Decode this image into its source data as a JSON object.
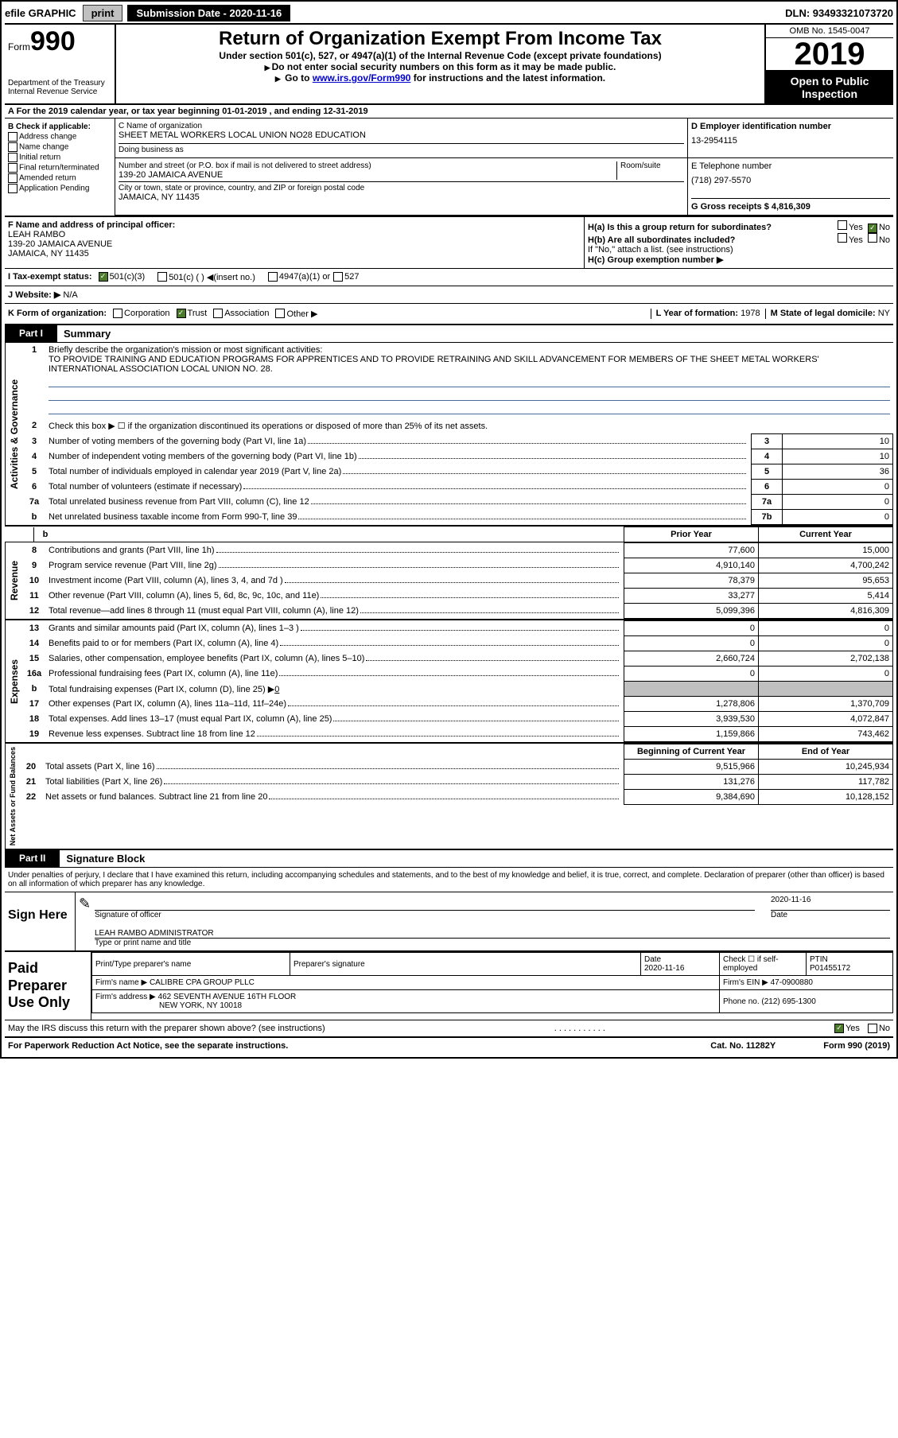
{
  "topbar": {
    "efile": "efile GRAPHIC",
    "print": "print",
    "subdate_label": "Submission Date - ",
    "subdate": "2020-11-16",
    "dln": "DLN: 93493321073720"
  },
  "header": {
    "form_label": "Form",
    "form_num": "990",
    "dept": "Department of the Treasury",
    "irs": "Internal Revenue Service",
    "title": "Return of Organization Exempt From Income Tax",
    "subtitle": "Under section 501(c), 527, or 4947(a)(1) of the Internal Revenue Code (except private foundations)",
    "note1": "Do not enter social security numbers on this form as it may be made public.",
    "note2_pre": "Go to ",
    "note2_link": "www.irs.gov/Form990",
    "note2_post": " for instructions and the latest information.",
    "omb": "OMB No. 1545-0047",
    "year": "2019",
    "inspection": "Open to Public Inspection"
  },
  "period": {
    "text": "A For the 2019 calendar year, or tax year beginning 01-01-2019    , and ending 12-31-2019"
  },
  "colB": {
    "label": "B Check if applicable:",
    "opts": [
      "Address change",
      "Name change",
      "Initial return",
      "Final return/terminated",
      "Amended return",
      "Application Pending"
    ]
  },
  "colC": {
    "name_label": "C Name of organization",
    "name": "SHEET METAL WORKERS LOCAL UNION NO28 EDUCATION",
    "dba_label": "Doing business as",
    "dba": "",
    "addr_label": "Number and street (or P.O. box if mail is not delivered to street address)",
    "room_label": "Room/suite",
    "addr": "139-20 JAMAICA AVENUE",
    "city_label": "City or town, state or province, country, and ZIP or foreign postal code",
    "city": "JAMAICA, NY  11435"
  },
  "colD": {
    "label": "D Employer identification number",
    "ein": "13-2954115"
  },
  "colE": {
    "label": "E Telephone number",
    "tel": "(718) 297-5570"
  },
  "colG": {
    "label": "G Gross receipts $",
    "val": "4,816,309"
  },
  "colF": {
    "label": "F Name and address of principal officer:",
    "name": "LEAH RAMBO",
    "addr": "139-20 JAMAICA AVENUE",
    "city": "JAMAICA, NY  11435"
  },
  "colH": {
    "a_label": "H(a)  Is this a group return for subordinates?",
    "a_yes": "Yes",
    "a_no": "No",
    "b_label": "H(b)  Are all subordinates included?",
    "b_yes": "Yes",
    "b_no": "No",
    "b_note": "If \"No,\" attach a list. (see instructions)",
    "c_label": "H(c)  Group exemption number"
  },
  "colI": {
    "label": "I  Tax-exempt status:",
    "opts": [
      "501(c)(3)",
      "501(c) (  ) ◀(insert no.)",
      "4947(a)(1) or",
      "527"
    ]
  },
  "colJ": {
    "label": "J  Website: ▶",
    "val": "N/A"
  },
  "colK": {
    "label": "K Form of organization:",
    "opts": [
      "Corporation",
      "Trust",
      "Association",
      "Other ▶"
    ],
    "l_label": "L Year of formation:",
    "l_val": "1978",
    "m_label": "M State of legal domicile:",
    "m_val": "NY"
  },
  "part1": {
    "tab": "Part I",
    "title": "Summary"
  },
  "governance": {
    "side": "Activities & Governance",
    "l1_label": "Briefly describe the organization's mission or most significant activities:",
    "l1_text": "TO PROVIDE TRAINING AND EDUCATION PROGRAMS FOR APPRENTICES AND TO PROVIDE RETRAINING AND SKILL ADVANCEMENT FOR MEMBERS OF THE SHEET METAL WORKERS' INTERNATIONAL ASSOCIATION LOCAL UNION NO. 28.",
    "l2_label": "Check this box ▶ ☐ if the organization discontinued its operations or disposed of more than 25% of its net assets.",
    "rows": [
      {
        "n": "3",
        "label": "Number of voting members of the governing body (Part VI, line 1a)",
        "box": "3",
        "val": "10"
      },
      {
        "n": "4",
        "label": "Number of independent voting members of the governing body (Part VI, line 1b)",
        "box": "4",
        "val": "10"
      },
      {
        "n": "5",
        "label": "Total number of individuals employed in calendar year 2019 (Part V, line 2a)",
        "box": "5",
        "val": "36"
      },
      {
        "n": "6",
        "label": "Total number of volunteers (estimate if necessary)",
        "box": "6",
        "val": "0"
      },
      {
        "n": "7a",
        "label": "Total unrelated business revenue from Part VIII, column (C), line 12",
        "box": "7a",
        "val": "0"
      },
      {
        "n": "b",
        "label": "Net unrelated business taxable income from Form 990-T, line 39",
        "box": "7b",
        "val": "0"
      }
    ]
  },
  "revenue": {
    "side": "Revenue",
    "prior_header": "Prior Year",
    "current_header": "Current Year",
    "rows": [
      {
        "n": "8",
        "label": "Contributions and grants (Part VIII, line 1h)",
        "prior": "77,600",
        "curr": "15,000"
      },
      {
        "n": "9",
        "label": "Program service revenue (Part VIII, line 2g)",
        "prior": "4,910,140",
        "curr": "4,700,242"
      },
      {
        "n": "10",
        "label": "Investment income (Part VIII, column (A), lines 3, 4, and 7d )",
        "prior": "78,379",
        "curr": "95,653"
      },
      {
        "n": "11",
        "label": "Other revenue (Part VIII, column (A), lines 5, 6d, 8c, 9c, 10c, and 11e)",
        "prior": "33,277",
        "curr": "5,414"
      },
      {
        "n": "12",
        "label": "Total revenue—add lines 8 through 11 (must equal Part VIII, column (A), line 12)",
        "prior": "5,099,396",
        "curr": "4,816,309"
      }
    ]
  },
  "expenses": {
    "side": "Expenses",
    "rows": [
      {
        "n": "13",
        "label": "Grants and similar amounts paid (Part IX, column (A), lines 1–3 )",
        "prior": "0",
        "curr": "0"
      },
      {
        "n": "14",
        "label": "Benefits paid to or for members (Part IX, column (A), line 4)",
        "prior": "0",
        "curr": "0"
      },
      {
        "n": "15",
        "label": "Salaries, other compensation, employee benefits (Part IX, column (A), lines 5–10)",
        "prior": "2,660,724",
        "curr": "2,702,138"
      },
      {
        "n": "16a",
        "label": "Professional fundraising fees (Part IX, column (A), line 11e)",
        "prior": "0",
        "curr": "0"
      }
    ],
    "l16b_label": "Total fundraising expenses (Part IX, column (D), line 25) ▶",
    "l16b_val": "0",
    "rows2": [
      {
        "n": "17",
        "label": "Other expenses (Part IX, column (A), lines 11a–11d, 11f–24e)",
        "prior": "1,278,806",
        "curr": "1,370,709"
      },
      {
        "n": "18",
        "label": "Total expenses. Add lines 13–17 (must equal Part IX, column (A), line 25)",
        "prior": "3,939,530",
        "curr": "4,072,847"
      },
      {
        "n": "19",
        "label": "Revenue less expenses. Subtract line 18 from line 12",
        "prior": "1,159,866",
        "curr": "743,462"
      }
    ]
  },
  "netassets": {
    "side": "Net Assets or Fund Balances",
    "begin_header": "Beginning of Current Year",
    "end_header": "End of Year",
    "rows": [
      {
        "n": "20",
        "label": "Total assets (Part X, line 16)",
        "prior": "9,515,966",
        "curr": "10,245,934"
      },
      {
        "n": "21",
        "label": "Total liabilities (Part X, line 26)",
        "prior": "131,276",
        "curr": "117,782"
      },
      {
        "n": "22",
        "label": "Net assets or fund balances. Subtract line 21 from line 20",
        "prior": "9,384,690",
        "curr": "10,128,152"
      }
    ]
  },
  "part2": {
    "tab": "Part II",
    "title": "Signature Block",
    "decl": "Under penalties of perjury, I declare that I have examined this return, including accompanying schedules and statements, and to the best of my knowledge and belief, it is true, correct, and complete. Declaration of preparer (other than officer) is based on all information of which preparer has any knowledge."
  },
  "sign": {
    "label": "Sign Here",
    "sig_label": "Signature of officer",
    "date_label": "Date",
    "date": "2020-11-16",
    "name": "LEAH RAMBO  ADMINISTRATOR",
    "name_label": "Type or print name and title"
  },
  "paid": {
    "label": "Paid Preparer Use Only",
    "r1": {
      "c1": "Print/Type preparer's name",
      "c2": "Preparer's signature",
      "c3_label": "Date",
      "c3": "2020-11-16",
      "c4_label": "Check ☐ if self-employed",
      "c5_label": "PTIN",
      "c5": "P01455172"
    },
    "r2": {
      "c1_label": "Firm's name    ▶",
      "c1": "CALIBRE CPA GROUP PLLC",
      "c2_label": "Firm's EIN ▶",
      "c2": "47-0900880"
    },
    "r3": {
      "c1_label": "Firm's address ▶",
      "c1": "462 SEVENTH AVENUE 16TH FLOOR",
      "c1b": "NEW YORK, NY  10018",
      "c2_label": "Phone no.",
      "c2": "(212) 695-1300"
    }
  },
  "discuss": {
    "label": "May the IRS discuss this return with the preparer shown above? (see instructions)",
    "yes": "Yes",
    "no": "No"
  },
  "footer": {
    "left": "For Paperwork Reduction Act Notice, see the separate instructions.",
    "mid": "Cat. No. 11282Y",
    "right": "Form 990 (2019)"
  }
}
